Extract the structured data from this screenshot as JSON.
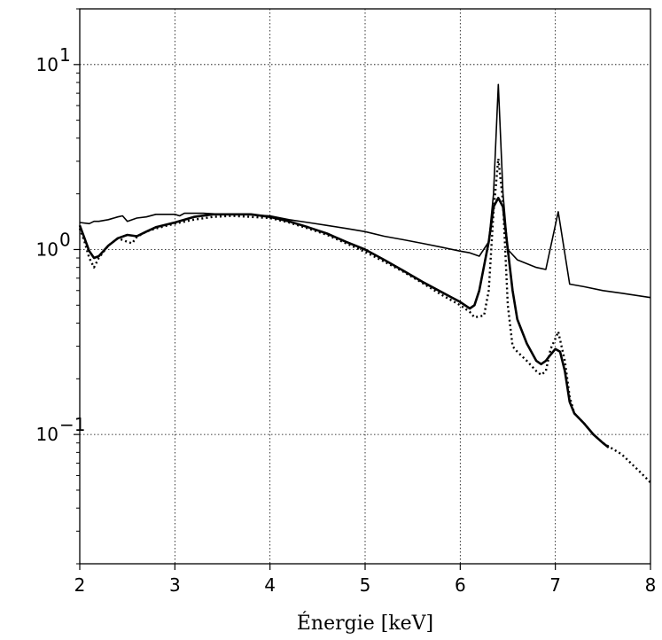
{
  "chart_data": {
    "type": "line",
    "title": "",
    "xlabel": "Énergie [keV]",
    "ylabel": "",
    "xlim": [
      2,
      8
    ],
    "ylim": [
      0.02,
      20
    ],
    "yscale": "log",
    "grid": true,
    "xticks": [
      "2",
      "3",
      "4",
      "5",
      "6",
      "7",
      "8"
    ],
    "yticks": [
      {
        "value": 10,
        "base": "10",
        "exp": "1"
      },
      {
        "value": 1,
        "base": "10",
        "exp": "0"
      },
      {
        "value": 0.1,
        "base": "10",
        "exp": "−1"
      }
    ],
    "series": [
      {
        "style": "thin-solid",
        "points": [
          [
            2.0,
            1.4
          ],
          [
            2.1,
            1.38
          ],
          [
            2.15,
            1.42
          ],
          [
            2.2,
            1.42
          ],
          [
            2.3,
            1.45
          ],
          [
            2.4,
            1.5
          ],
          [
            2.45,
            1.52
          ],
          [
            2.5,
            1.42
          ],
          [
            2.6,
            1.48
          ],
          [
            2.7,
            1.5
          ],
          [
            2.8,
            1.55
          ],
          [
            3.0,
            1.55
          ],
          [
            3.05,
            1.52
          ],
          [
            3.1,
            1.57
          ],
          [
            3.3,
            1.57
          ],
          [
            3.5,
            1.55
          ],
          [
            3.7,
            1.55
          ],
          [
            4.0,
            1.52
          ],
          [
            4.2,
            1.45
          ],
          [
            4.4,
            1.4
          ],
          [
            4.6,
            1.35
          ],
          [
            4.8,
            1.3
          ],
          [
            5.0,
            1.25
          ],
          [
            5.2,
            1.18
          ],
          [
            5.4,
            1.13
          ],
          [
            5.6,
            1.08
          ],
          [
            5.8,
            1.03
          ],
          [
            6.0,
            0.98
          ],
          [
            6.1,
            0.96
          ],
          [
            6.2,
            0.92
          ],
          [
            6.3,
            1.1
          ],
          [
            6.35,
            2.0
          ],
          [
            6.4,
            7.8
          ],
          [
            6.45,
            2.0
          ],
          [
            6.5,
            1.0
          ],
          [
            6.6,
            0.88
          ],
          [
            6.8,
            0.8
          ],
          [
            6.9,
            0.78
          ],
          [
            7.03,
            1.6
          ],
          [
            7.15,
            0.65
          ],
          [
            7.3,
            0.63
          ],
          [
            7.5,
            0.6
          ],
          [
            7.7,
            0.58
          ],
          [
            8.0,
            0.55
          ]
        ]
      },
      {
        "style": "thick-solid",
        "points": [
          [
            2.0,
            1.35
          ],
          [
            2.05,
            1.15
          ],
          [
            2.1,
            0.98
          ],
          [
            2.15,
            0.9
          ],
          [
            2.2,
            0.92
          ],
          [
            2.3,
            1.05
          ],
          [
            2.4,
            1.15
          ],
          [
            2.5,
            1.2
          ],
          [
            2.6,
            1.18
          ],
          [
            2.7,
            1.25
          ],
          [
            2.8,
            1.32
          ],
          [
            3.0,
            1.4
          ],
          [
            3.2,
            1.5
          ],
          [
            3.4,
            1.55
          ],
          [
            3.6,
            1.55
          ],
          [
            3.8,
            1.55
          ],
          [
            4.0,
            1.5
          ],
          [
            4.2,
            1.42
          ],
          [
            4.4,
            1.32
          ],
          [
            4.6,
            1.22
          ],
          [
            4.8,
            1.1
          ],
          [
            5.0,
            1.0
          ],
          [
            5.2,
            0.88
          ],
          [
            5.4,
            0.77
          ],
          [
            5.6,
            0.67
          ],
          [
            5.8,
            0.59
          ],
          [
            6.0,
            0.52
          ],
          [
            6.1,
            0.48
          ],
          [
            6.15,
            0.5
          ],
          [
            6.2,
            0.6
          ],
          [
            6.3,
            1.1
          ],
          [
            6.35,
            1.7
          ],
          [
            6.4,
            1.9
          ],
          [
            6.45,
            1.7
          ],
          [
            6.5,
            1.0
          ],
          [
            6.55,
            0.6
          ],
          [
            6.6,
            0.42
          ],
          [
            6.7,
            0.31
          ],
          [
            6.8,
            0.25
          ],
          [
            6.85,
            0.24
          ],
          [
            6.9,
            0.25
          ],
          [
            6.95,
            0.27
          ],
          [
            7.0,
            0.29
          ],
          [
            7.05,
            0.28
          ],
          [
            7.1,
            0.22
          ],
          [
            7.15,
            0.15
          ],
          [
            7.2,
            0.13
          ],
          [
            7.3,
            0.115
          ],
          [
            7.4,
            0.1
          ],
          [
            7.5,
            0.09
          ],
          [
            7.56,
            0.085
          ]
        ]
      },
      {
        "style": "dotted",
        "points": [
          [
            2.0,
            1.3
          ],
          [
            2.05,
            1.1
          ],
          [
            2.1,
            0.9
          ],
          [
            2.15,
            0.8
          ],
          [
            2.2,
            0.9
          ],
          [
            2.3,
            1.05
          ],
          [
            2.4,
            1.15
          ],
          [
            2.5,
            1.1
          ],
          [
            2.55,
            1.08
          ],
          [
            2.6,
            1.17
          ],
          [
            2.7,
            1.25
          ],
          [
            2.8,
            1.3
          ],
          [
            3.0,
            1.38
          ],
          [
            3.2,
            1.45
          ],
          [
            3.4,
            1.5
          ],
          [
            3.6,
            1.52
          ],
          [
            3.8,
            1.5
          ],
          [
            4.0,
            1.48
          ],
          [
            4.2,
            1.4
          ],
          [
            4.4,
            1.3
          ],
          [
            4.6,
            1.2
          ],
          [
            4.8,
            1.08
          ],
          [
            5.0,
            0.97
          ],
          [
            5.2,
            0.86
          ],
          [
            5.4,
            0.76
          ],
          [
            5.6,
            0.66
          ],
          [
            5.8,
            0.57
          ],
          [
            6.0,
            0.5
          ],
          [
            6.1,
            0.46
          ],
          [
            6.15,
            0.43
          ],
          [
            6.25,
            0.44
          ],
          [
            6.3,
            0.6
          ],
          [
            6.35,
            1.6
          ],
          [
            6.4,
            3.1
          ],
          [
            6.45,
            1.8
          ],
          [
            6.5,
            0.5
          ],
          [
            6.55,
            0.3
          ],
          [
            6.6,
            0.28
          ],
          [
            6.7,
            0.25
          ],
          [
            6.8,
            0.22
          ],
          [
            6.85,
            0.21
          ],
          [
            6.9,
            0.22
          ],
          [
            6.95,
            0.29
          ],
          [
            7.0,
            0.33
          ],
          [
            7.03,
            0.36
          ],
          [
            7.1,
            0.25
          ],
          [
            7.15,
            0.16
          ],
          [
            7.2,
            0.13
          ],
          [
            7.3,
            0.115
          ],
          [
            7.4,
            0.1
          ],
          [
            7.5,
            0.09
          ],
          [
            7.7,
            0.078
          ],
          [
            7.9,
            0.062
          ],
          [
            8.0,
            0.055
          ]
        ]
      }
    ]
  }
}
